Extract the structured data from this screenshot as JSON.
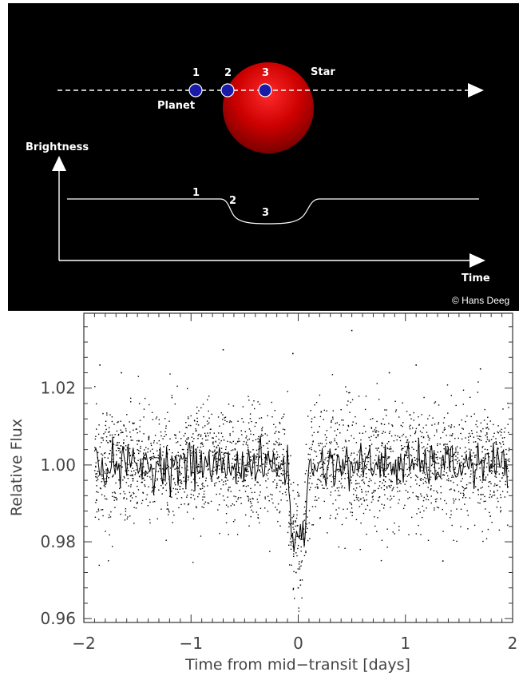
{
  "diagram": {
    "labels": {
      "star": "Star",
      "planet": "Planet",
      "brightness": "Brightness",
      "time": "Time",
      "copyright": "© Hans Deeg",
      "pos1": "1",
      "pos2": "2",
      "pos3": "3",
      "curve1": "1",
      "curve2": "2",
      "curve3": "3"
    },
    "colors": {
      "background": "#000000",
      "star": "#cc0000",
      "planet": "#1a1aa8",
      "line": "#ffffff"
    }
  },
  "chart_data": {
    "type": "scatter",
    "title": "",
    "xlabel": "Time from mid−transit [days]",
    "ylabel": "Relative Flux",
    "xlim": [
      -2.0,
      2.0
    ],
    "ylim": [
      0.959,
      1.0395
    ],
    "xticks": [
      -2,
      -1,
      0,
      1,
      2
    ],
    "xtick_labels": [
      "−2",
      "−1",
      "0",
      "1",
      "2"
    ],
    "yticks": [
      0.96,
      0.98,
      1.0,
      1.02
    ],
    "ytick_labels": [
      "0.96",
      "0.98",
      "1.00",
      "1.02"
    ],
    "grid": false,
    "series": [
      {
        "kind": "points",
        "description_of_distribution": "dense scatter of individual flux measurements",
        "noise_sigma": 0.0075,
        "baseline": 1.0,
        "n_points": 2600,
        "outliers": [
          [
            -1.85,
            1.026
          ],
          [
            -1.65,
            1.024
          ],
          [
            -0.7,
            1.03
          ],
          [
            -0.05,
            1.029
          ],
          [
            0.5,
            1.035
          ],
          [
            0.85,
            1.024
          ],
          [
            1.1,
            1.026
          ],
          [
            1.7,
            1.025
          ],
          [
            0.0,
            0.968
          ],
          [
            -0.02,
            0.972
          ],
          [
            0.02,
            0.97
          ],
          [
            1.35,
            0.975
          ]
        ]
      },
      {
        "kind": "line",
        "description_of_distribution": "binned / smoothed light curve",
        "baseline": 1.0,
        "transit_center": 0.0,
        "transit_depth": 0.019,
        "transit_half_width": 0.1
      }
    ]
  }
}
